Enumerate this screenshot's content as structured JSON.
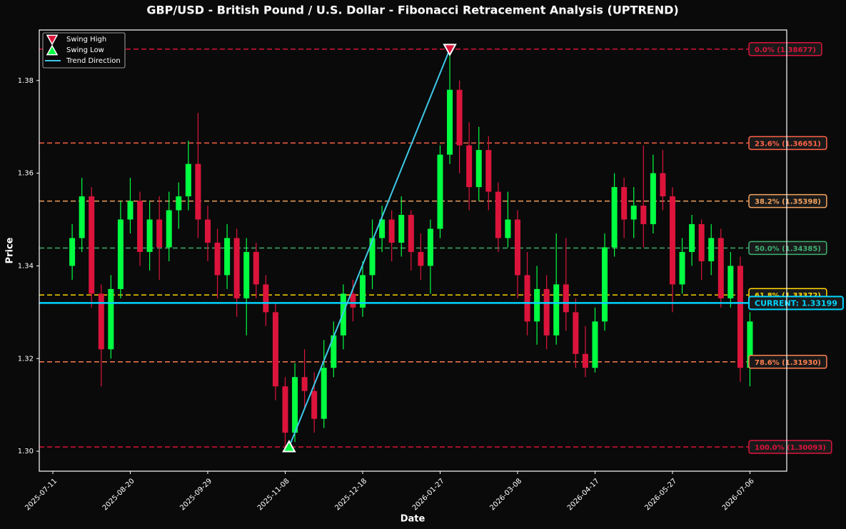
{
  "chart_data": {
    "type": "candlestick",
    "title": "GBP/USD - British Pound / U.S. Dollar - Fibonacci Retracement Analysis (UPTREND)",
    "x_label": "Date",
    "y_label": "Price",
    "xlim": [
      "2025-07-04",
      "2026-07-25"
    ],
    "xticks": [
      "2025-07-11",
      "2025-08-20",
      "2025-09-29",
      "2025-11-08",
      "2025-12-18",
      "2026-01-27",
      "2026-03-08",
      "2026-04-17",
      "2026-05-27",
      "2026-07-06"
    ],
    "ylim": [
      1.2957,
      1.3909
    ],
    "yticks": [
      {
        "value": 1.3,
        "label": "1.30"
      },
      1.32,
      1.34,
      1.36,
      1.38
    ],
    "up_color": "#00ff41",
    "down_color": "#dc143c",
    "x": [
      "2025-07-21",
      "2025-07-26",
      "2025-07-31",
      "2025-08-05",
      "2025-08-10",
      "2025-08-15",
      "2025-08-20",
      "2025-08-25",
      "2025-08-30",
      "2025-09-04",
      "2025-09-09",
      "2025-09-14",
      "2025-09-19",
      "2025-09-24",
      "2025-09-29",
      "2025-10-04",
      "2025-10-09",
      "2025-10-14",
      "2025-10-19",
      "2025-10-24",
      "2025-10-29",
      "2025-11-03",
      "2025-11-08",
      "2025-11-13",
      "2025-11-18",
      "2025-11-23",
      "2025-11-28",
      "2025-12-03",
      "2025-12-08",
      "2025-12-13",
      "2025-12-18",
      "2025-12-23",
      "2025-12-28",
      "2026-01-02",
      "2026-01-07",
      "2026-01-12",
      "2026-01-17",
      "2026-01-22",
      "2026-01-27",
      "2026-02-01",
      "2026-02-06",
      "2026-02-11",
      "2026-02-16",
      "2026-02-21",
      "2026-02-26",
      "2026-03-03",
      "2026-03-08",
      "2026-03-13",
      "2026-03-18",
      "2026-03-23",
      "2026-03-28",
      "2026-04-02",
      "2026-04-07",
      "2026-04-12",
      "2026-04-17",
      "2026-04-22",
      "2026-04-27",
      "2026-05-02",
      "2026-05-07",
      "2026-05-12",
      "2026-05-17",
      "2026-05-22",
      "2026-05-27",
      "2026-06-01",
      "2026-06-06",
      "2026-06-11",
      "2026-06-16",
      "2026-06-21",
      "2026-06-26",
      "2026-07-01",
      "2026-07-06"
    ],
    "open": [
      1.34,
      1.346,
      1.355,
      1.334,
      1.322,
      1.335,
      1.35,
      1.354,
      1.343,
      1.35,
      1.344,
      1.352,
      1.355,
      1.362,
      1.35,
      1.345,
      1.338,
      1.346,
      1.333,
      1.343,
      1.336,
      1.33,
      1.314,
      1.304,
      1.316,
      1.313,
      1.307,
      1.318,
      1.325,
      1.334,
      1.331,
      1.338,
      1.346,
      1.35,
      1.345,
      1.351,
      1.343,
      1.34,
      1.348,
      1.364,
      1.378,
      1.366,
      1.357,
      1.365,
      1.356,
      1.346,
      1.35,
      1.338,
      1.328,
      1.335,
      1.325,
      1.336,
      1.33,
      1.321,
      1.318,
      1.328,
      1.344,
      1.357,
      1.35,
      1.353,
      1.349,
      1.36,
      1.355,
      1.336,
      1.343,
      1.349,
      1.341,
      1.346,
      1.333,
      1.34,
      1.318
    ],
    "high": [
      1.349,
      1.359,
      1.357,
      1.336,
      1.338,
      1.354,
      1.359,
      1.356,
      1.354,
      1.355,
      1.356,
      1.358,
      1.367,
      1.373,
      1.353,
      1.348,
      1.349,
      1.348,
      1.346,
      1.345,
      1.338,
      1.332,
      1.316,
      1.319,
      1.322,
      1.317,
      1.324,
      1.328,
      1.336,
      1.337,
      1.341,
      1.35,
      1.353,
      1.352,
      1.355,
      1.352,
      1.347,
      1.35,
      1.366,
      1.3868,
      1.38,
      1.371,
      1.37,
      1.368,
      1.358,
      1.356,
      1.352,
      1.343,
      1.34,
      1.338,
      1.347,
      1.346,
      1.333,
      1.327,
      1.331,
      1.347,
      1.36,
      1.359,
      1.357,
      1.366,
      1.364,
      1.365,
      1.357,
      1.346,
      1.351,
      1.35,
      1.349,
      1.348,
      1.343,
      1.342,
      1.33
    ],
    "low": [
      1.337,
      1.343,
      1.331,
      1.314,
      1.32,
      1.333,
      1.347,
      1.34,
      1.339,
      1.337,
      1.341,
      1.348,
      1.352,
      1.346,
      1.341,
      1.333,
      1.335,
      1.329,
      1.325,
      1.333,
      1.327,
      1.311,
      1.301,
      1.302,
      1.309,
      1.304,
      1.305,
      1.316,
      1.322,
      1.328,
      1.329,
      1.335,
      1.343,
      1.341,
      1.342,
      1.339,
      1.337,
      1.334,
      1.346,
      1.362,
      1.36,
      1.352,
      1.354,
      1.352,
      1.343,
      1.344,
      1.333,
      1.325,
      1.323,
      1.322,
      1.323,
      1.326,
      1.318,
      1.316,
      1.317,
      1.326,
      1.342,
      1.346,
      1.346,
      1.344,
      1.347,
      1.352,
      1.33,
      1.334,
      1.34,
      1.337,
      1.338,
      1.331,
      1.331,
      1.315,
      1.314
    ],
    "close": [
      1.346,
      1.355,
      1.334,
      1.322,
      1.335,
      1.35,
      1.354,
      1.343,
      1.35,
      1.344,
      1.352,
      1.355,
      1.362,
      1.35,
      1.345,
      1.338,
      1.346,
      1.333,
      1.343,
      1.336,
      1.33,
      1.314,
      1.304,
      1.316,
      1.313,
      1.307,
      1.318,
      1.325,
      1.334,
      1.331,
      1.338,
      1.346,
      1.35,
      1.345,
      1.351,
      1.343,
      1.34,
      1.348,
      1.364,
      1.378,
      1.366,
      1.357,
      1.365,
      1.356,
      1.346,
      1.35,
      1.338,
      1.328,
      1.335,
      1.325,
      1.336,
      1.33,
      1.321,
      1.318,
      1.328,
      1.344,
      1.357,
      1.35,
      1.353,
      1.349,
      1.36,
      1.355,
      1.336,
      1.343,
      1.349,
      1.341,
      1.346,
      1.333,
      1.34,
      1.318,
      1.328
    ],
    "fib_levels": [
      {
        "value": 1.38677,
        "label": "0.0% (1.38677)",
        "color": "#dc143c"
      },
      {
        "value": 1.36651,
        "label": "23.6% (1.36651)",
        "color": "#ff6347"
      },
      {
        "value": 1.35398,
        "label": "38.2% (1.35398)",
        "color": "#f4a460"
      },
      {
        "value": 1.34385,
        "label": "50.0% (1.34385)",
        "color": "#3cb371"
      },
      {
        "value": 1.33372,
        "label": "61.8% (1.33372)",
        "color": "#ffd700"
      },
      {
        "value": 1.3193,
        "label": "78.6% (1.31930)",
        "color": "#ff7f50"
      },
      {
        "value": 1.30093,
        "label": "100.0% (1.30093)",
        "color": "#dc143c"
      }
    ],
    "current": {
      "value": 1.33199,
      "label": "CURRENT: 1.33199",
      "color": "#00d4ff"
    },
    "swing_high": {
      "name": "Swing High",
      "x": "2026-02-01",
      "value": 1.38677,
      "color": "#dc143c"
    },
    "swing_low": {
      "name": "Swing Low",
      "x": "2025-11-10",
      "value": 1.30093,
      "color": "#00ff41"
    },
    "trend": {
      "name": "Trend Direction",
      "color": "#3ec8e8"
    }
  }
}
